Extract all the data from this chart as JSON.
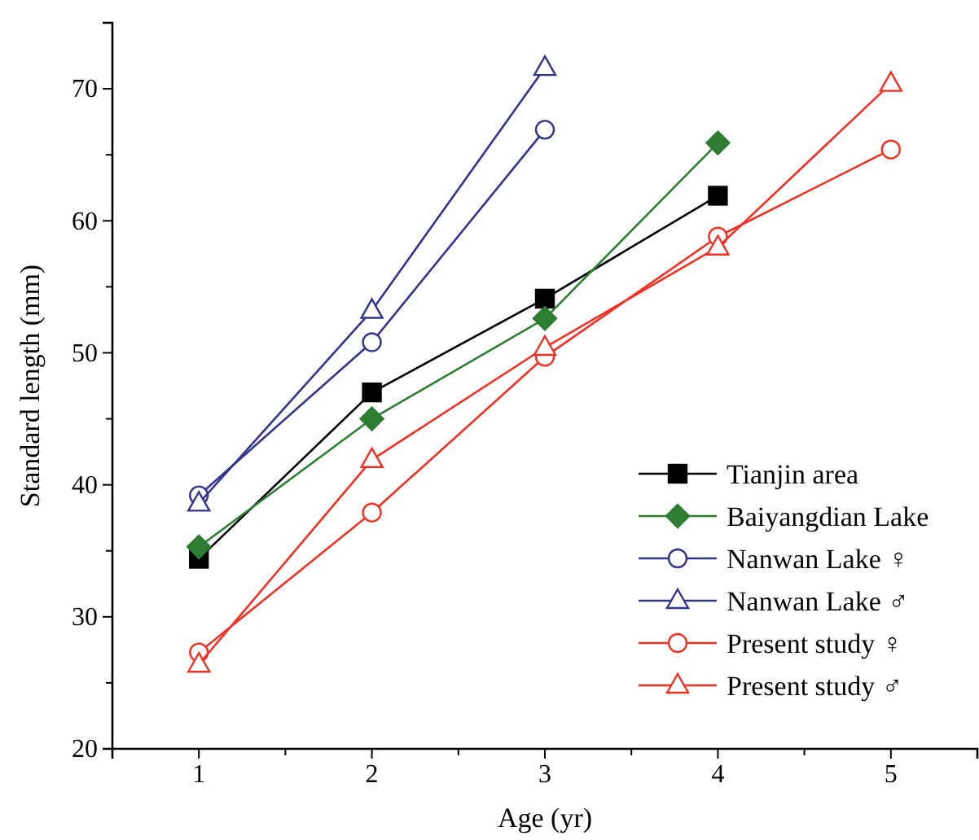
{
  "chart_data": {
    "type": "line",
    "xlabel": "Age (yr)",
    "ylabel": "Standard length (mm)",
    "x": [
      1,
      2,
      3,
      4,
      5
    ],
    "xlim": [
      0.5,
      5.5
    ],
    "xticks": [
      1,
      2,
      3,
      4,
      5
    ],
    "ylim": [
      20,
      75
    ],
    "yticks": [
      20,
      30,
      40,
      50,
      60,
      70
    ],
    "grid": false,
    "legend": "bottom right",
    "series": [
      {
        "name": "Tianjin area",
        "color": "#000000",
        "marker": "square",
        "values": [
          34.4,
          47.0,
          54.1,
          61.9,
          null
        ]
      },
      {
        "name": "Baiyangdian Lake",
        "color": "#2e7d32",
        "marker": "diamond",
        "values": [
          35.3,
          45.0,
          52.6,
          65.9,
          null
        ]
      },
      {
        "name": "Nanwan Lake ♀",
        "color": "#333388",
        "marker": "circle",
        "values": [
          39.2,
          50.8,
          66.9,
          null,
          null
        ]
      },
      {
        "name": "Nanwan Lake ♂",
        "color": "#333388",
        "marker": "triangle",
        "values": [
          38.6,
          53.2,
          71.6,
          null,
          null
        ]
      },
      {
        "name": "Present study ♀",
        "color": "#ee3124",
        "marker": "circle",
        "values": [
          27.3,
          37.9,
          49.7,
          58.8,
          65.4
        ]
      },
      {
        "name": "Present study ♂",
        "color": "#ee3124",
        "marker": "triangle",
        "values": [
          26.4,
          41.9,
          50.4,
          58.0,
          70.4
        ]
      }
    ]
  }
}
